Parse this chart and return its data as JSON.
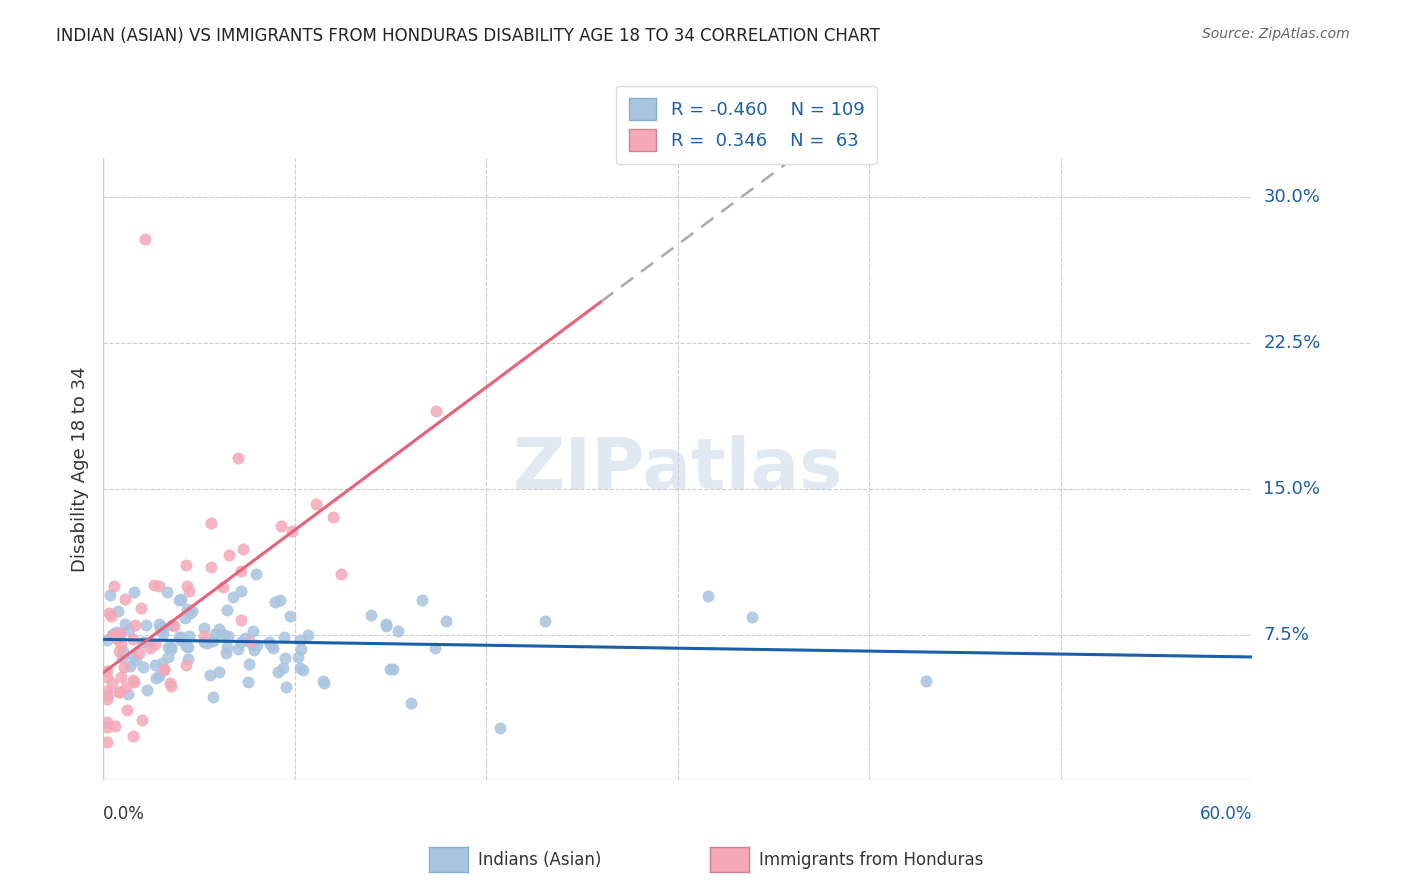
{
  "title": "INDIAN (ASIAN) VS IMMIGRANTS FROM HONDURAS DISABILITY AGE 18 TO 34 CORRELATION CHART",
  "source": "Source: ZipAtlas.com",
  "ylabel": "Disability Age 18 to 34",
  "yticks": [
    "7.5%",
    "15.0%",
    "22.5%",
    "30.0%"
  ],
  "ytick_vals": [
    0.075,
    0.15,
    0.225,
    0.3
  ],
  "xlim": [
    0.0,
    0.6
  ],
  "ylim": [
    0.0,
    0.32
  ],
  "legend_blue_label": "Indians (Asian)",
  "legend_pink_label": "Immigrants from Honduras",
  "r_blue": -0.46,
  "n_blue": 109,
  "r_pink": 0.346,
  "n_pink": 63,
  "blue_color": "#a8c4e0",
  "pink_color": "#f4a8b8",
  "blue_line_color": "#1a5fa8",
  "pink_line_color": "#e8607a",
  "dash_line_color": "#aaaaaa",
  "watermark_color": "#c8d8e8",
  "grid_color": "#cccccc",
  "title_color": "#222222",
  "source_color": "#666666",
  "label_color": "#333333",
  "watermark": "ZIPatlas"
}
